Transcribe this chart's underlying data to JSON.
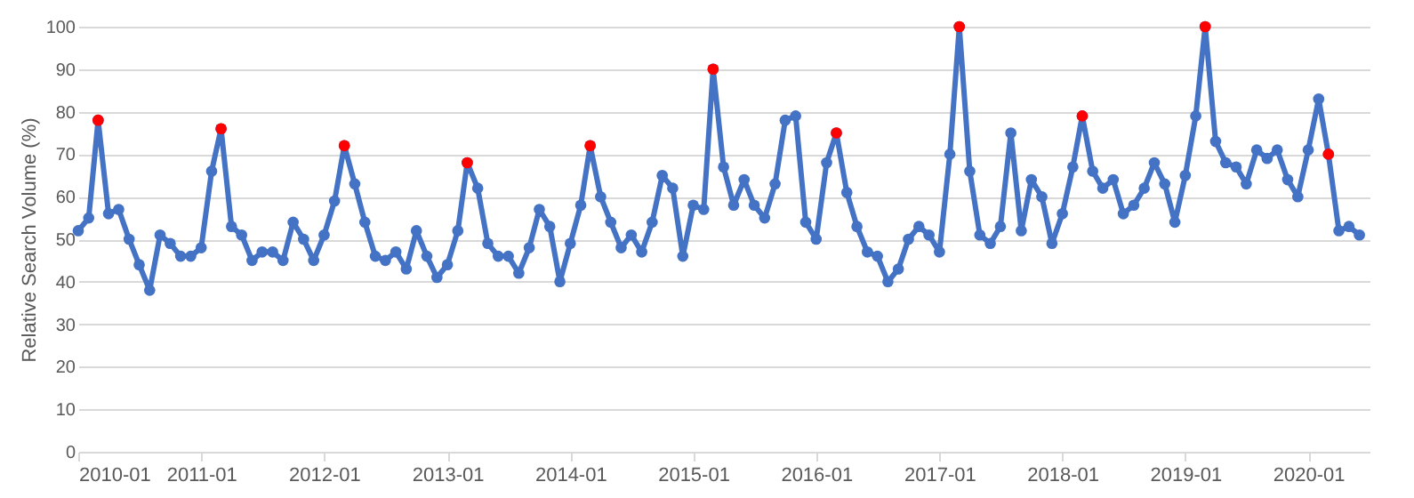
{
  "chart_data": {
    "type": "line",
    "ylabel": "Relative Search Volume (%)",
    "x": [
      "2010-01",
      "2010-02",
      "2010-03",
      "2010-04",
      "2010-05",
      "2010-06",
      "2010-07",
      "2010-08",
      "2010-09",
      "2010-10",
      "2010-11",
      "2010-12",
      "2011-01",
      "2011-02",
      "2011-03",
      "2011-04",
      "2011-05",
      "2011-06",
      "2011-07",
      "2011-08",
      "2011-09",
      "2011-10",
      "2011-11",
      "2011-12",
      "2012-01",
      "2012-02",
      "2012-03",
      "2012-04",
      "2012-05",
      "2012-06",
      "2012-07",
      "2012-08",
      "2012-09",
      "2012-10",
      "2012-11",
      "2012-12",
      "2013-01",
      "2013-02",
      "2013-03",
      "2013-04",
      "2013-05",
      "2013-06",
      "2013-07",
      "2013-08",
      "2013-09",
      "2013-10",
      "2013-11",
      "2013-12",
      "2014-01",
      "2014-02",
      "2014-03",
      "2014-04",
      "2014-05",
      "2014-06",
      "2014-07",
      "2014-08",
      "2014-09",
      "2014-10",
      "2014-11",
      "2014-12",
      "2015-01",
      "2015-02",
      "2015-03",
      "2015-04",
      "2015-05",
      "2015-06",
      "2015-07",
      "2015-08",
      "2015-09",
      "2015-10",
      "2015-11",
      "2015-12",
      "2016-01",
      "2016-02",
      "2016-03",
      "2016-04",
      "2016-05",
      "2016-06",
      "2016-07",
      "2016-08",
      "2016-09",
      "2016-10",
      "2016-11",
      "2016-12",
      "2017-01",
      "2017-02",
      "2017-03",
      "2017-04",
      "2017-05",
      "2017-06",
      "2017-07",
      "2017-08",
      "2017-09",
      "2017-10",
      "2017-11",
      "2017-12",
      "2018-01",
      "2018-02",
      "2018-03",
      "2018-04",
      "2018-05",
      "2018-06",
      "2018-07",
      "2018-08",
      "2018-09",
      "2018-10",
      "2018-11",
      "2018-12",
      "2019-01",
      "2019-02",
      "2019-03",
      "2019-04",
      "2019-05",
      "2019-06",
      "2019-07",
      "2019-08",
      "2019-09",
      "2019-10",
      "2019-11",
      "2019-12",
      "2020-01",
      "2020-02",
      "2020-03",
      "2020-04",
      "2020-05",
      "2020-06"
    ],
    "series": [
      {
        "color": "#4472c4",
        "values": [
          52,
          55,
          78,
          56,
          57,
          50,
          44,
          38,
          51,
          49,
          46,
          46,
          48,
          66,
          76,
          53,
          51,
          45,
          47,
          47,
          45,
          54,
          50,
          45,
          51,
          59,
          72,
          63,
          54,
          46,
          45,
          47,
          43,
          52,
          46,
          41,
          44,
          52,
          68,
          62,
          49,
          46,
          46,
          42,
          48,
          57,
          53,
          40,
          49,
          58,
          72,
          60,
          54,
          48,
          51,
          47,
          54,
          65,
          62,
          46,
          58,
          57,
          90,
          67,
          58,
          64,
          58,
          55,
          63,
          78,
          79,
          54,
          50,
          68,
          75,
          61,
          53,
          47,
          46,
          40,
          43,
          50,
          53,
          51,
          47,
          70,
          100,
          66,
          51,
          49,
          53,
          75,
          52,
          64,
          60,
          49,
          56,
          67,
          79,
          66,
          62,
          64,
          56,
          58,
          62,
          68,
          63,
          54,
          65,
          79,
          100,
          73,
          68,
          67,
          63,
          71,
          69,
          71,
          64,
          60,
          71,
          83,
          70,
          52,
          53,
          51
        ]
      },
      {
        "type": "scatter",
        "color": "#ff0000",
        "x": [
          "2010-03",
          "2011-03",
          "2012-03",
          "2013-03",
          "2014-03",
          "2015-03",
          "2016-03",
          "2017-03",
          "2018-03",
          "2019-03",
          "2020-03"
        ],
        "values": [
          78,
          76,
          72,
          68,
          72,
          90,
          75,
          100,
          79,
          100,
          70
        ]
      }
    ],
    "xlim": [
      "2010-01",
      "2020-07"
    ],
    "xticks": [
      "2010-01",
      "2011-01",
      "2012-01",
      "2013-01",
      "2014-01",
      "2015-01",
      "2016-01",
      "2017-01",
      "2018-01",
      "2019-01",
      "2020-01"
    ],
    "ylim": [
      0,
      100
    ],
    "yticks": [
      0,
      10,
      20,
      30,
      40,
      50,
      60,
      70,
      80,
      90,
      100
    ],
    "grid": "y",
    "legend": false,
    "marker": "circle",
    "line_style": "solid"
  }
}
